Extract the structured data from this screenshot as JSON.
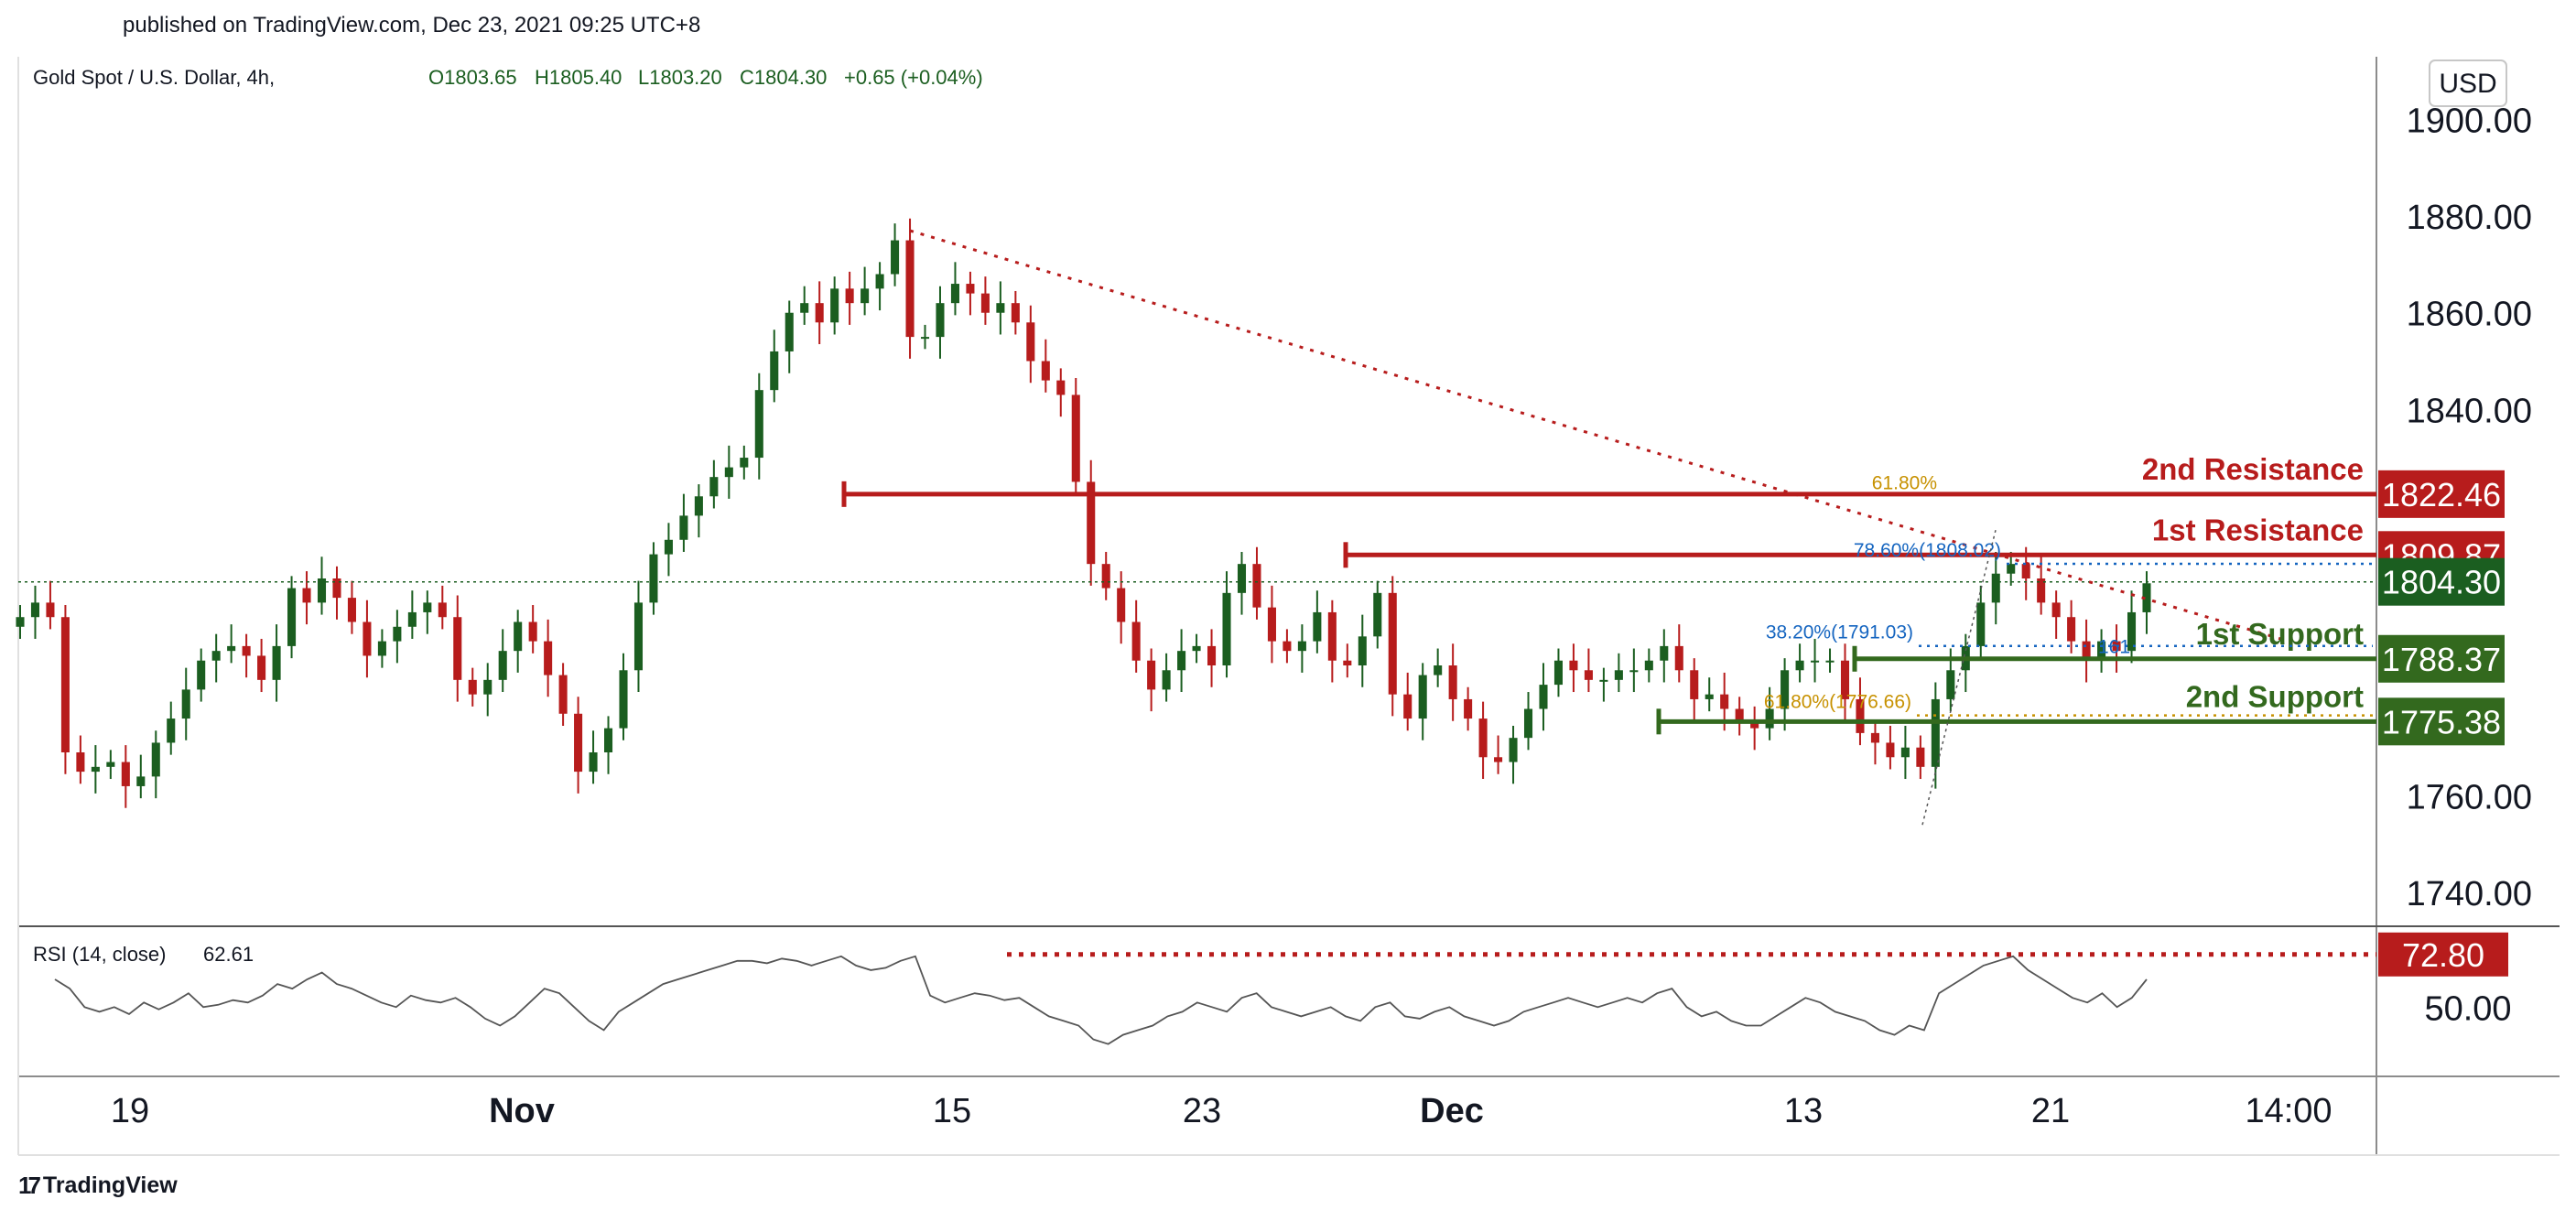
{
  "header": {
    "published": "published on TradingView.com, Dec 23, 2021 09:25 UTC+8",
    "symbol": "Gold Spot / U.S. Dollar, 4h,",
    "ohlc": {
      "open": "O1803.65",
      "high": "H1805.40",
      "low": "L1803.20",
      "close": "C1804.30",
      "change": "+0.65 (+0.04%)"
    }
  },
  "currency_button": "USD",
  "footer": {
    "brand": "TradingView"
  },
  "colors": {
    "resistance": "#b71c1c",
    "support": "#33691e",
    "up": "#1b5e20",
    "down": "#b71c1c",
    "fib_blue": "#1565c0",
    "fib_gold": "#c79100",
    "current": "#1b5e20"
  },
  "chart_data": [
    {
      "type": "candlestick",
      "title": "Gold Spot / U.S. Dollar, 4h",
      "ylim": [
        1733,
        1913
      ],
      "y_ticks": [
        "1900.00",
        "1880.00",
        "1860.00",
        "1840.00",
        "1760.00",
        "1740.00"
      ],
      "x_ticks": [
        "19",
        "Nov",
        "15",
        "23",
        "Dec",
        "13",
        "21",
        "14:00"
      ],
      "ohlc": {
        "open": 1803.65,
        "high": 1805.4,
        "low": 1803.2,
        "close": 1804.3,
        "change": 0.65,
        "change_pct": 0.04
      },
      "series": [
        {
          "name": "price (approx. close path)",
          "values": [
            1797,
            1800,
            1797,
            1769,
            1765,
            1766,
            1767,
            1762,
            1764,
            1771,
            1776,
            1782,
            1788,
            1790,
            1791,
            1789,
            1784,
            1791,
            1803,
            1800,
            1805,
            1801,
            1796,
            1789,
            1792,
            1795,
            1798,
            1800,
            1797,
            1784,
            1781,
            1784,
            1790,
            1796,
            1792,
            1785,
            1777,
            1765,
            1769,
            1774,
            1786,
            1800,
            1810,
            1813,
            1818,
            1822,
            1826,
            1828,
            1830,
            1844,
            1852,
            1860,
            1862,
            1858,
            1865,
            1862,
            1865,
            1868,
            1875,
            1855,
            1855,
            1862,
            1866,
            1864,
            1860,
            1862,
            1858,
            1850,
            1846,
            1843,
            1825,
            1808,
            1803,
            1796,
            1788,
            1782,
            1786,
            1790,
            1791,
            1787,
            1802,
            1808,
            1799,
            1792,
            1790,
            1792,
            1798,
            1788,
            1787,
            1793,
            1802,
            1781,
            1776,
            1785,
            1787,
            1780,
            1776,
            1768,
            1767,
            1772,
            1778,
            1783,
            1788,
            1786,
            1784,
            1784,
            1786,
            1786,
            1788,
            1791,
            1786,
            1780,
            1781,
            1778,
            1775,
            1774,
            1778,
            1786,
            1788,
            1788,
            1788,
            1780,
            1773,
            1771,
            1768,
            1770,
            1766,
            1780,
            1786,
            1791,
            1800,
            1806,
            1808,
            1805,
            1800,
            1797,
            1792,
            1788,
            1792,
            1790,
            1798,
            1804
          ]
        },
        {
          "name": "trendline (dotted)",
          "points": [
            [
              "Nov 16",
              1877
            ],
            [
              "Dec 23",
              1797
            ]
          ]
        }
      ],
      "levels": [
        {
          "name": "2nd Resistance",
          "value": 1822.46,
          "label": "1822.46"
        },
        {
          "name": "1st Resistance",
          "value": 1809.87,
          "label": "1809.87"
        },
        {
          "name": "current price",
          "value": 1804.3,
          "label": "1804.30"
        },
        {
          "name": "1st Support",
          "value": 1788.37,
          "label": "1788.37"
        },
        {
          "name": "2nd Support",
          "value": 1775.38,
          "label": "1775.38"
        }
      ],
      "fib_levels": [
        {
          "label": "61.80%",
          "value": 1822
        },
        {
          "label": "78.60%(1808.02)",
          "value": 1808.02
        },
        {
          "label": "38.20%(1791.03)",
          "value": 1791.03
        },
        {
          "label": "61.80%(1776.66)",
          "value": 1776.66
        },
        {
          "label": "161",
          "value": 1788
        }
      ]
    },
    {
      "type": "line",
      "title": "RSI (14, close)",
      "current_value": "62.61",
      "ylim": [
        20,
        85
      ],
      "y_ticks": [
        "50.00"
      ],
      "levels": [
        {
          "name": "overbought",
          "value": 72.8,
          "label": "72.80"
        }
      ],
      "series": [
        {
          "name": "RSI",
          "values": [
            62,
            58,
            50,
            48,
            50,
            47,
            52,
            49,
            52,
            56,
            50,
            51,
            53,
            52,
            55,
            60,
            58,
            62,
            65,
            60,
            58,
            55,
            52,
            50,
            55,
            53,
            52,
            54,
            50,
            45,
            42,
            46,
            52,
            58,
            56,
            50,
            44,
            40,
            48,
            52,
            56,
            60,
            62,
            64,
            66,
            68,
            70,
            70,
            69,
            71,
            70,
            68,
            70,
            72,
            68,
            66,
            67,
            70,
            72,
            55,
            52,
            54,
            56,
            55,
            53,
            54,
            50,
            46,
            44,
            42,
            36,
            34,
            38,
            40,
            42,
            46,
            48,
            52,
            50,
            48,
            54,
            56,
            50,
            48,
            46,
            48,
            50,
            46,
            44,
            50,
            52,
            46,
            45,
            48,
            50,
            46,
            44,
            42,
            44,
            48,
            50,
            52,
            54,
            52,
            50,
            52,
            54,
            52,
            56,
            58,
            50,
            46,
            48,
            44,
            42,
            42,
            46,
            50,
            54,
            52,
            48,
            46,
            44,
            40,
            38,
            42,
            40,
            56,
            60,
            64,
            68,
            70,
            72,
            66,
            62,
            58,
            54,
            52,
            56,
            50,
            54,
            62
          ]
        }
      ]
    }
  ]
}
